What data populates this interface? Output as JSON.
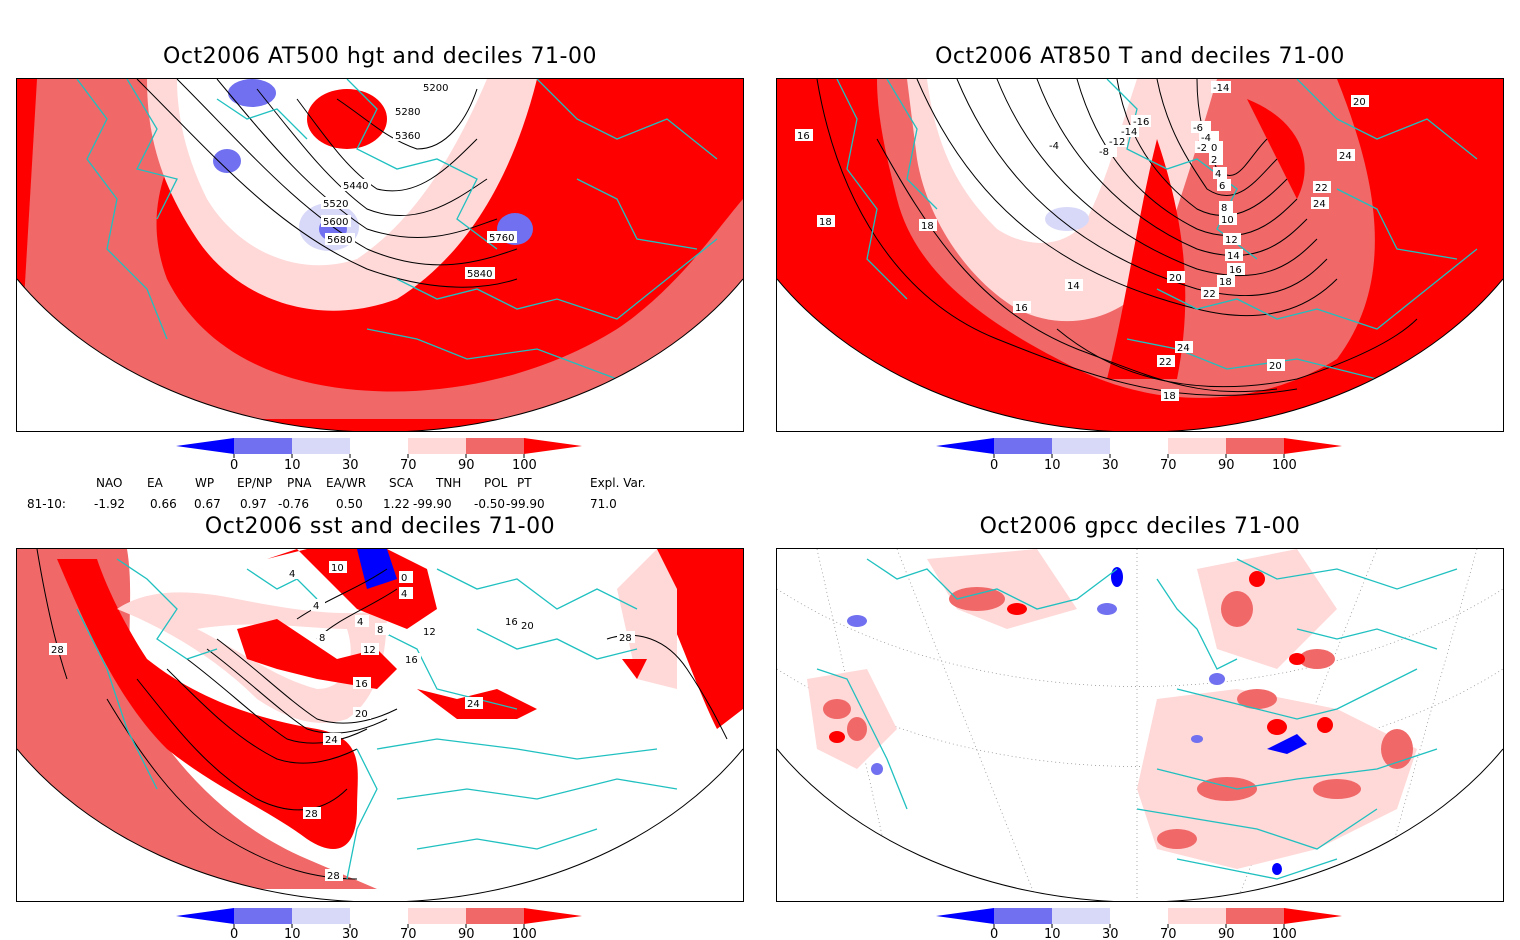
{
  "panels": {
    "p1": {
      "title": "Oct2006 AT500 hgt and deciles 71-00",
      "contour_labels": [
        "5200",
        "5280",
        "5360",
        "5440",
        "5520",
        "5600",
        "5680",
        "5760",
        "5840"
      ]
    },
    "p2": {
      "title": "Oct2006 AT850 T and deciles 71-00",
      "contour_labels": [
        "-14",
        "-16",
        "-14",
        "-12",
        "-8",
        "-4",
        "-6",
        "-4",
        "-2",
        "0",
        "2",
        "4",
        "6",
        "8",
        "10",
        "12",
        "14",
        "16",
        "18",
        "20",
        "22",
        "24",
        "22",
        "20",
        "18",
        "16",
        "14",
        "16",
        "18",
        "18",
        "24",
        "22",
        "24",
        "20"
      ]
    },
    "p3": {
      "title": "Oct2006 sst and deciles 71-00",
      "contour_labels": [
        "4",
        "10",
        "0",
        "4",
        "4",
        "4",
        "8",
        "8",
        "12",
        "12",
        "16",
        "16",
        "20",
        "24",
        "28",
        "28",
        "28",
        "24",
        "28",
        "16",
        "20"
      ]
    },
    "p4": {
      "title": "Oct2006 gpcc deciles 71-00",
      "contour_labels": []
    }
  },
  "colorbar": {
    "ticks": [
      "0",
      "10",
      "30",
      "70",
      "90",
      "100"
    ],
    "colors": [
      "#0000ff",
      "#7070f0",
      "#d8d8f8",
      "#ffffff",
      "#ffd8d8",
      "#f06868",
      "#ff0000"
    ]
  },
  "indices": {
    "headers": [
      "NAO",
      "EA",
      "WP",
      "EP/NP",
      "PNA",
      "EA/WR",
      "SCA",
      "TNH",
      "POL",
      "PT",
      "Expl. Var."
    ],
    "row_label": "81-10:",
    "values": [
      "-1.92",
      "0.66",
      "0.67",
      "0.97",
      "-0.76",
      "0.50",
      "1.22",
      "-99.90",
      "-0.50",
      "-99.90",
      "71.0"
    ]
  },
  "colors": {
    "coast": "#20c0c0",
    "contour": "#000000",
    "frame": "#000000"
  }
}
